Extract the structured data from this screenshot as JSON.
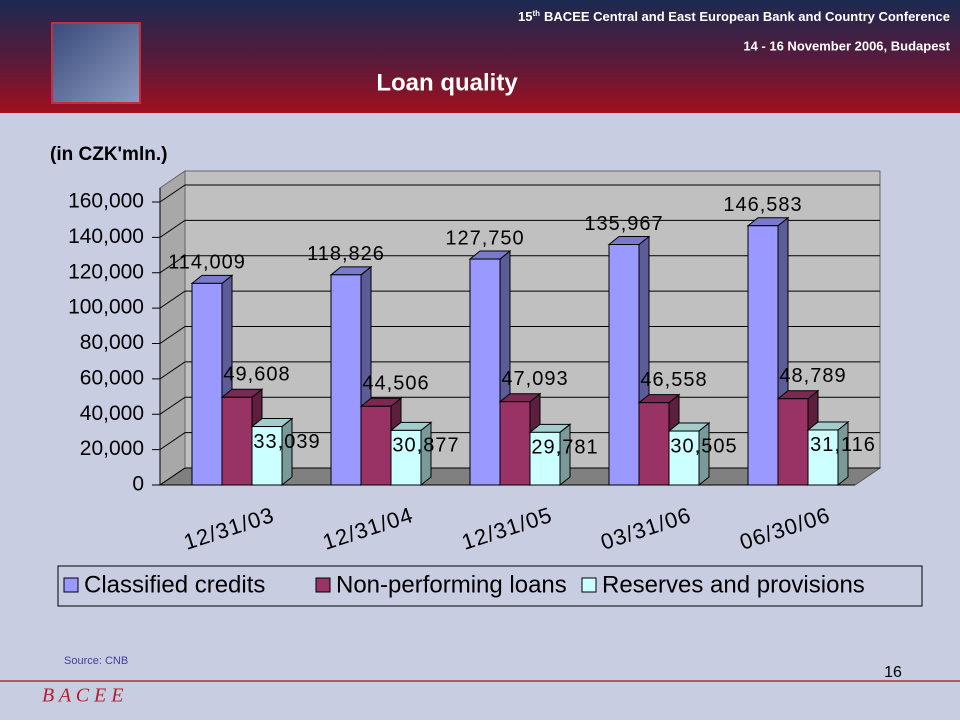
{
  "header": {
    "conference_number": "15",
    "conference_ordinal": "th",
    "conference_name": "BACEE Central and East European Bank and Country Conference",
    "dates": "14 - 16 November 2006, Budapest",
    "title": "Loan quality"
  },
  "chart_data": {
    "type": "bar",
    "subtitle": "(in CZK'mln.)",
    "categories": [
      "12/31/03",
      "12/31/04",
      "12/31/05",
      "03/31/06",
      "06/30/06"
    ],
    "series": [
      {
        "name": "Classified credits",
        "color": "#9999ff",
        "values": [
          114009,
          118826,
          127750,
          135967,
          146583
        ],
        "value_labels": [
          "114,009",
          "118,826",
          "127,750",
          "135,967",
          "146,583"
        ]
      },
      {
        "name": "Non-performing loans",
        "color": "#993366",
        "values": [
          49608,
          44506,
          47093,
          46558,
          48789
        ],
        "value_labels": [
          "49,608",
          "44,506",
          "47,093",
          "46,558",
          "48,789"
        ]
      },
      {
        "name": "Reserves and provisions",
        "color": "#ccffff",
        "values": [
          33039,
          30877,
          29781,
          30505,
          31116
        ],
        "value_labels": [
          "33,039",
          "30,877",
          "29,781",
          "30,505",
          "31,116"
        ]
      }
    ],
    "ylim": [
      0,
      160000
    ],
    "yticks": [
      0,
      {
        "value": 20000,
        "label": "20,000"
      },
      {
        "value": 40000,
        "label": "40,000"
      },
      {
        "value": 60000,
        "label": "60,000"
      },
      {
        "value": 80000,
        "label": "80,000"
      },
      {
        "value": 100000,
        "label": "100,000"
      },
      {
        "value": 120000,
        "label": "120,000"
      },
      {
        "value": 140000,
        "label": "140,000"
      },
      {
        "value": 160000,
        "label": "160,000"
      }
    ],
    "grid": true,
    "legend": "bottom"
  },
  "footer": {
    "source": "Source: CNB",
    "page": "16",
    "logo": "B A C E E"
  }
}
